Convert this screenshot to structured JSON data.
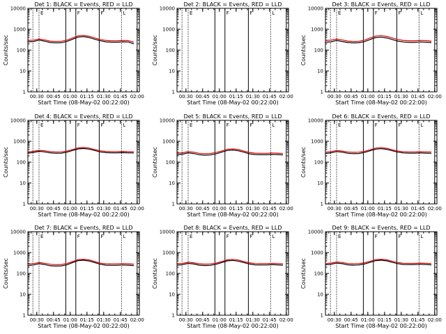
{
  "chart_data": {
    "type": "line",
    "x_ticks": [
      "00:30",
      "00:45",
      "01:00",
      "01:15",
      "01:30",
      "01:45",
      "02:00"
    ],
    "y_ticks": [
      "1",
      "10",
      "100",
      "1000",
      "10000"
    ],
    "y_scale": "log",
    "ylim": [
      1,
      10000
    ],
    "xlabel": "Start Time (08-May-02 00:22:00)",
    "ylabel": "Counts/sec",
    "series_colors": {
      "events": "#000000",
      "lld": "#e00000"
    },
    "panels": [
      {
        "title": "Det 1: BLACK = Events, RED = LLD",
        "vertical_markers": [
          "00:32",
          "00:56",
          "01:05",
          "01:26",
          "01:46",
          "02:00"
        ],
        "flag_letters": [
          "E",
          "F",
          "F",
          "L"
        ],
        "x": [
          "00:22",
          "00:27",
          "00:32",
          "00:37",
          "00:42",
          "00:47",
          "00:52",
          "00:57",
          "01:02",
          "01:07",
          "01:12",
          "01:17",
          "01:22",
          "01:27",
          "01:32",
          "01:37",
          "01:42",
          "01:47",
          "01:52",
          "01:57"
        ],
        "events": [
          250,
          260,
          300,
          270,
          230,
          220,
          225,
          260,
          330,
          420,
          440,
          400,
          330,
          280,
          250,
          240,
          240,
          250,
          245,
          200
        ],
        "lld": [
          290,
          300,
          340,
          310,
          270,
          260,
          265,
          300,
          380,
          480,
          500,
          460,
          380,
          320,
          290,
          280,
          280,
          290,
          285,
          240
        ]
      },
      {
        "title": "Det 2: BLACK = Events, RED = LLD",
        "vertical_markers": [
          "00:32",
          "00:56",
          "01:05",
          "01:26",
          "01:46",
          "02:00"
        ],
        "flag_letters": [
          "E",
          "F",
          "F",
          "L"
        ],
        "x": [],
        "events": [],
        "lld": []
      },
      {
        "title": "Det 3: BLACK = Events, RED = LLD",
        "vertical_markers": [
          "00:32",
          "00:56",
          "01:05",
          "01:26",
          "01:46",
          "02:00"
        ],
        "flag_letters": [
          "E",
          "F",
          "F",
          "L"
        ],
        "x": [
          "00:22",
          "00:27",
          "00:32",
          "00:37",
          "00:42",
          "00:47",
          "00:52",
          "00:57",
          "01:02",
          "01:07",
          "01:12",
          "01:17",
          "01:22",
          "01:27",
          "01:32",
          "01:37",
          "01:42",
          "01:47",
          "01:52",
          "01:57"
        ],
        "events": [
          240,
          250,
          290,
          260,
          230,
          220,
          225,
          255,
          320,
          400,
          420,
          380,
          320,
          270,
          245,
          235,
          235,
          245,
          240,
          230
        ],
        "lld": [
          290,
          300,
          340,
          310,
          270,
          260,
          265,
          300,
          380,
          470,
          490,
          450,
          380,
          320,
          290,
          280,
          280,
          290,
          285,
          270
        ]
      },
      {
        "title": "Det 4: BLACK = Events, RED = LLD",
        "vertical_markers": [
          "00:32",
          "00:56",
          "01:05",
          "01:26",
          "01:46",
          "02:00"
        ],
        "flag_letters": [
          "E",
          "F",
          "F",
          "L"
        ],
        "x": [
          "00:22",
          "00:27",
          "00:32",
          "00:37",
          "00:42",
          "00:47",
          "00:52",
          "00:57",
          "01:02",
          "01:07",
          "01:12",
          "01:17",
          "01:22",
          "01:27",
          "01:32",
          "01:37",
          "01:42",
          "01:47",
          "01:52",
          "01:57"
        ],
        "events": [
          270,
          290,
          330,
          310,
          280,
          265,
          270,
          300,
          360,
          430,
          450,
          420,
          360,
          310,
          285,
          280,
          280,
          285,
          280,
          275
        ],
        "lld": [
          310,
          330,
          370,
          350,
          320,
          305,
          310,
          340,
          400,
          480,
          500,
          470,
          400,
          350,
          325,
          320,
          320,
          325,
          320,
          315
        ]
      },
      {
        "title": "Det 5: BLACK = Events, RED = LLD",
        "vertical_markers": [
          "00:32",
          "00:56",
          "01:05",
          "01:26",
          "01:46",
          "02:00"
        ],
        "flag_letters": [
          "E",
          "F",
          "F",
          "L"
        ],
        "x": [
          "00:22",
          "00:27",
          "00:32",
          "00:37",
          "00:42",
          "00:47",
          "00:52",
          "00:57",
          "01:02",
          "01:07",
          "01:12",
          "01:17",
          "01:22",
          "01:27",
          "01:32",
          "01:37",
          "01:42",
          "01:47",
          "01:52",
          "01:57"
        ],
        "events": [
          230,
          240,
          280,
          260,
          225,
          215,
          220,
          250,
          300,
          360,
          380,
          350,
          300,
          250,
          230,
          225,
          225,
          235,
          230,
          220
        ],
        "lld": [
          270,
          280,
          320,
          300,
          265,
          255,
          260,
          290,
          340,
          410,
          430,
          400,
          340,
          290,
          270,
          265,
          265,
          275,
          270,
          260
        ]
      },
      {
        "title": "Det 6: BLACK = Events, RED = LLD",
        "vertical_markers": [
          "00:32",
          "00:56",
          "01:05",
          "01:26",
          "01:46",
          "02:00"
        ],
        "flag_letters": [
          "E",
          "F",
          "F",
          "L"
        ],
        "x": [
          "00:22",
          "00:27",
          "00:32",
          "00:37",
          "00:42",
          "00:47",
          "00:52",
          "00:57",
          "01:02",
          "01:07",
          "01:12",
          "01:17",
          "01:22",
          "01:27",
          "01:32",
          "01:37",
          "01:42",
          "01:47",
          "01:52",
          "01:57"
        ],
        "events": [
          260,
          280,
          320,
          300,
          265,
          255,
          260,
          290,
          350,
          420,
          440,
          410,
          350,
          300,
          275,
          270,
          270,
          275,
          270,
          265
        ],
        "lld": [
          300,
          320,
          360,
          340,
          305,
          295,
          300,
          330,
          390,
          470,
          490,
          460,
          390,
          340,
          315,
          310,
          310,
          315,
          310,
          305
        ]
      },
      {
        "title": "Det 7: BLACK = Events, RED = LLD",
        "vertical_markers": [
          "00:32",
          "00:56",
          "01:05",
          "01:26",
          "01:46",
          "02:00"
        ],
        "flag_letters": [
          "E",
          "F",
          "F",
          "L"
        ],
        "x": [
          "00:22",
          "00:27",
          "00:32",
          "00:37",
          "00:42",
          "00:47",
          "00:52",
          "00:57",
          "01:02",
          "01:07",
          "01:12",
          "01:17",
          "01:22",
          "01:27",
          "01:32",
          "01:37",
          "01:42",
          "01:47",
          "01:52",
          "01:57"
        ],
        "events": [
          240,
          255,
          295,
          270,
          235,
          225,
          230,
          260,
          330,
          410,
          430,
          395,
          330,
          275,
          250,
          245,
          245,
          255,
          250,
          240
        ],
        "lld": [
          280,
          295,
          335,
          310,
          275,
          265,
          270,
          300,
          370,
          460,
          480,
          445,
          370,
          315,
          290,
          285,
          285,
          295,
          290,
          280
        ]
      },
      {
        "title": "Det 8: BLACK = Events, RED = LLD",
        "vertical_markers": [
          "00:32",
          "00:56",
          "01:05",
          "01:26",
          "01:46",
          "02:00"
        ],
        "flag_letters": [
          "E",
          "F",
          "F",
          "L"
        ],
        "x": [
          "00:22",
          "00:27",
          "00:32",
          "00:37",
          "00:42",
          "00:47",
          "00:52",
          "00:57",
          "01:02",
          "01:07",
          "01:12",
          "01:17",
          "01:22",
          "01:27",
          "01:32",
          "01:37",
          "01:42",
          "01:47",
          "01:52",
          "01:57"
        ],
        "events": [
          250,
          265,
          305,
          285,
          250,
          240,
          245,
          275,
          330,
          400,
          420,
          390,
          330,
          285,
          260,
          255,
          255,
          265,
          260,
          250
        ],
        "lld": [
          290,
          305,
          345,
          325,
          290,
          280,
          285,
          315,
          370,
          450,
          470,
          440,
          370,
          325,
          300,
          295,
          295,
          305,
          300,
          290
        ]
      },
      {
        "title": "Det 9: BLACK = Events, RED = LLD",
        "vertical_markers": [
          "00:32",
          "00:56",
          "01:05",
          "01:26",
          "01:46",
          "02:00"
        ],
        "flag_letters": [
          "E",
          "F",
          "F",
          "L"
        ],
        "x": [
          "00:22",
          "00:27",
          "00:32",
          "00:37",
          "00:42",
          "00:47",
          "00:52",
          "00:57",
          "01:02",
          "01:07",
          "01:12",
          "01:17",
          "01:22",
          "01:27",
          "01:32",
          "01:37",
          "01:42",
          "01:47",
          "01:52",
          "01:57"
        ],
        "events": [
          260,
          275,
          315,
          295,
          260,
          250,
          255,
          285,
          340,
          410,
          430,
          400,
          340,
          295,
          270,
          265,
          265,
          275,
          270,
          260
        ],
        "lld": [
          300,
          315,
          355,
          335,
          300,
          290,
          295,
          325,
          380,
          460,
          480,
          450,
          380,
          335,
          310,
          305,
          305,
          315,
          310,
          300
        ]
      }
    ]
  }
}
